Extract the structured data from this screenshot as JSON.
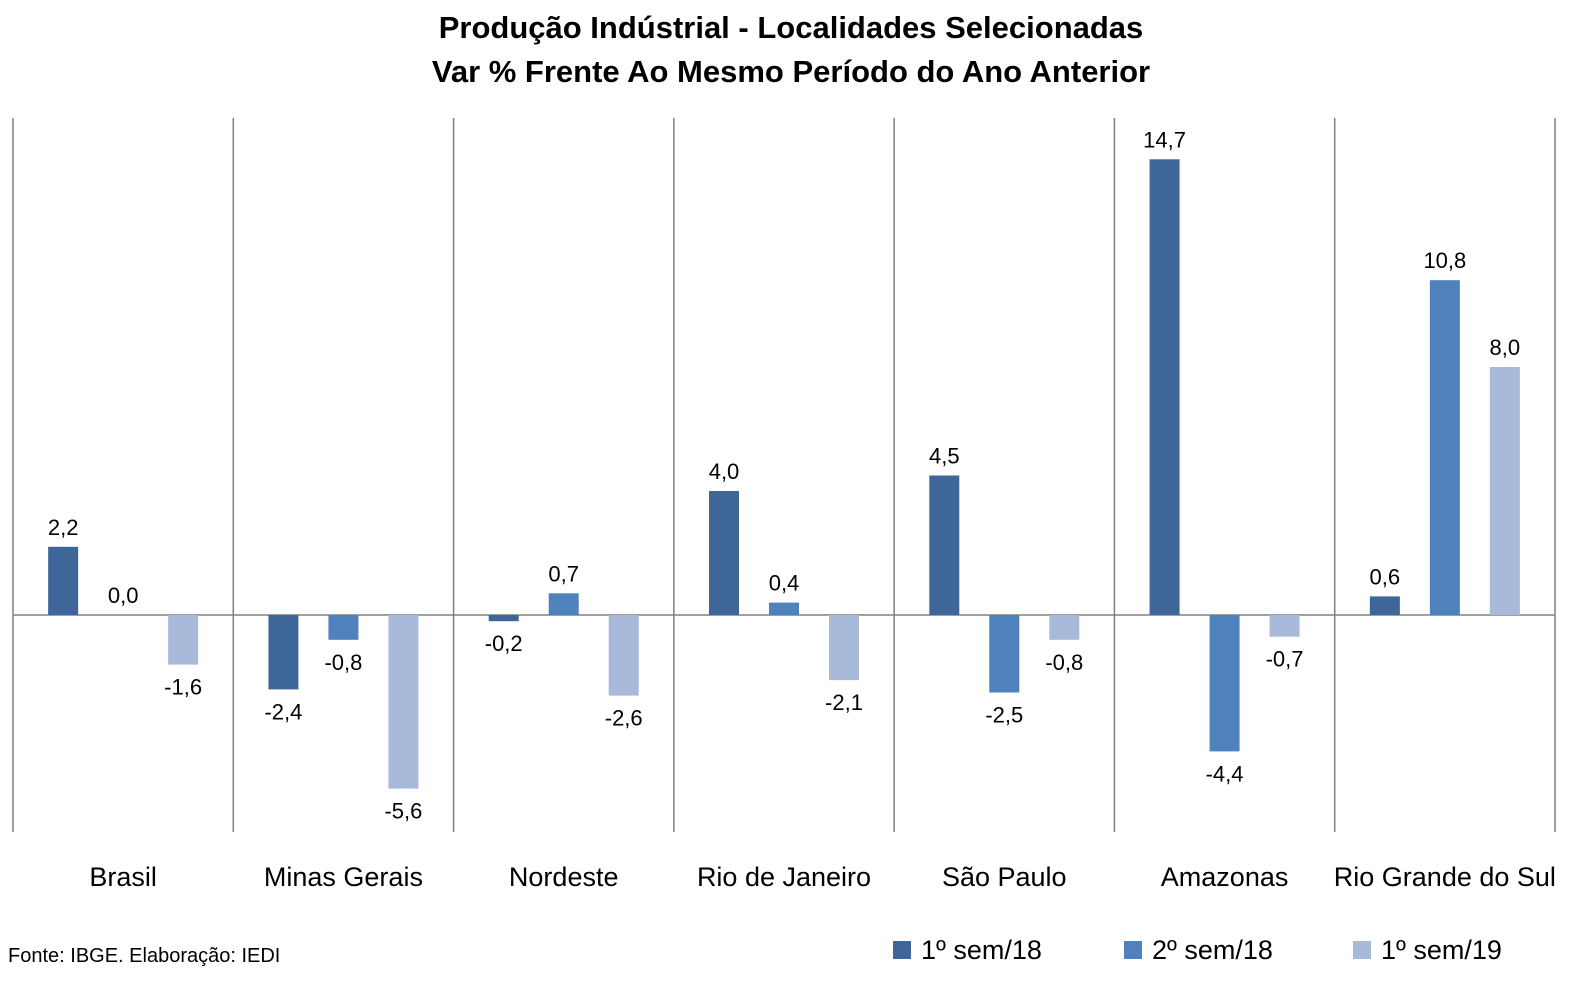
{
  "chart_data": {
    "type": "bar",
    "title": "Produção Indústrial - Localidades Selecionadas",
    "subtitle": "Var % Frente Ao Mesmo Período do Ano Anterior",
    "categories": [
      "Brasil",
      "Minas Gerais",
      "Nordeste",
      "Rio de Janeiro",
      "São Paulo",
      "Amazonas",
      "Rio Grande do Sul"
    ],
    "series": [
      {
        "name": "1º sem/18",
        "color": "#3F6698",
        "values": [
          2.2,
          -2.4,
          -0.2,
          4.0,
          4.5,
          14.7,
          0.6
        ],
        "labels": [
          "2,2",
          "-2,4",
          "-0,2",
          "4,0",
          "4,5",
          "14,7",
          "0,6"
        ]
      },
      {
        "name": "2º sem/18",
        "color": "#4F81BD",
        "values": [
          0.0,
          -0.8,
          0.7,
          0.4,
          -2.5,
          -4.4,
          10.8
        ],
        "labels": [
          "0,0",
          "-0,8",
          "0,7",
          "0,4",
          "-2,5",
          "-4,4",
          "10,8"
        ]
      },
      {
        "name": "1º sem/19",
        "color": "#A9B9D9",
        "values": [
          -1.6,
          -5.6,
          -2.6,
          -2.1,
          -0.8,
          -0.7,
          8.0
        ],
        "labels": [
          "-1,6",
          "-5,6",
          "-2,6",
          "-2,1",
          "-0,8",
          "-0,7",
          "8,0"
        ]
      }
    ],
    "ylim": [
      -7,
      16.2
    ],
    "grid": false,
    "legend_position": "bottom-right"
  },
  "source_note": "Fonte: IBGE. Elaboração: IEDI"
}
